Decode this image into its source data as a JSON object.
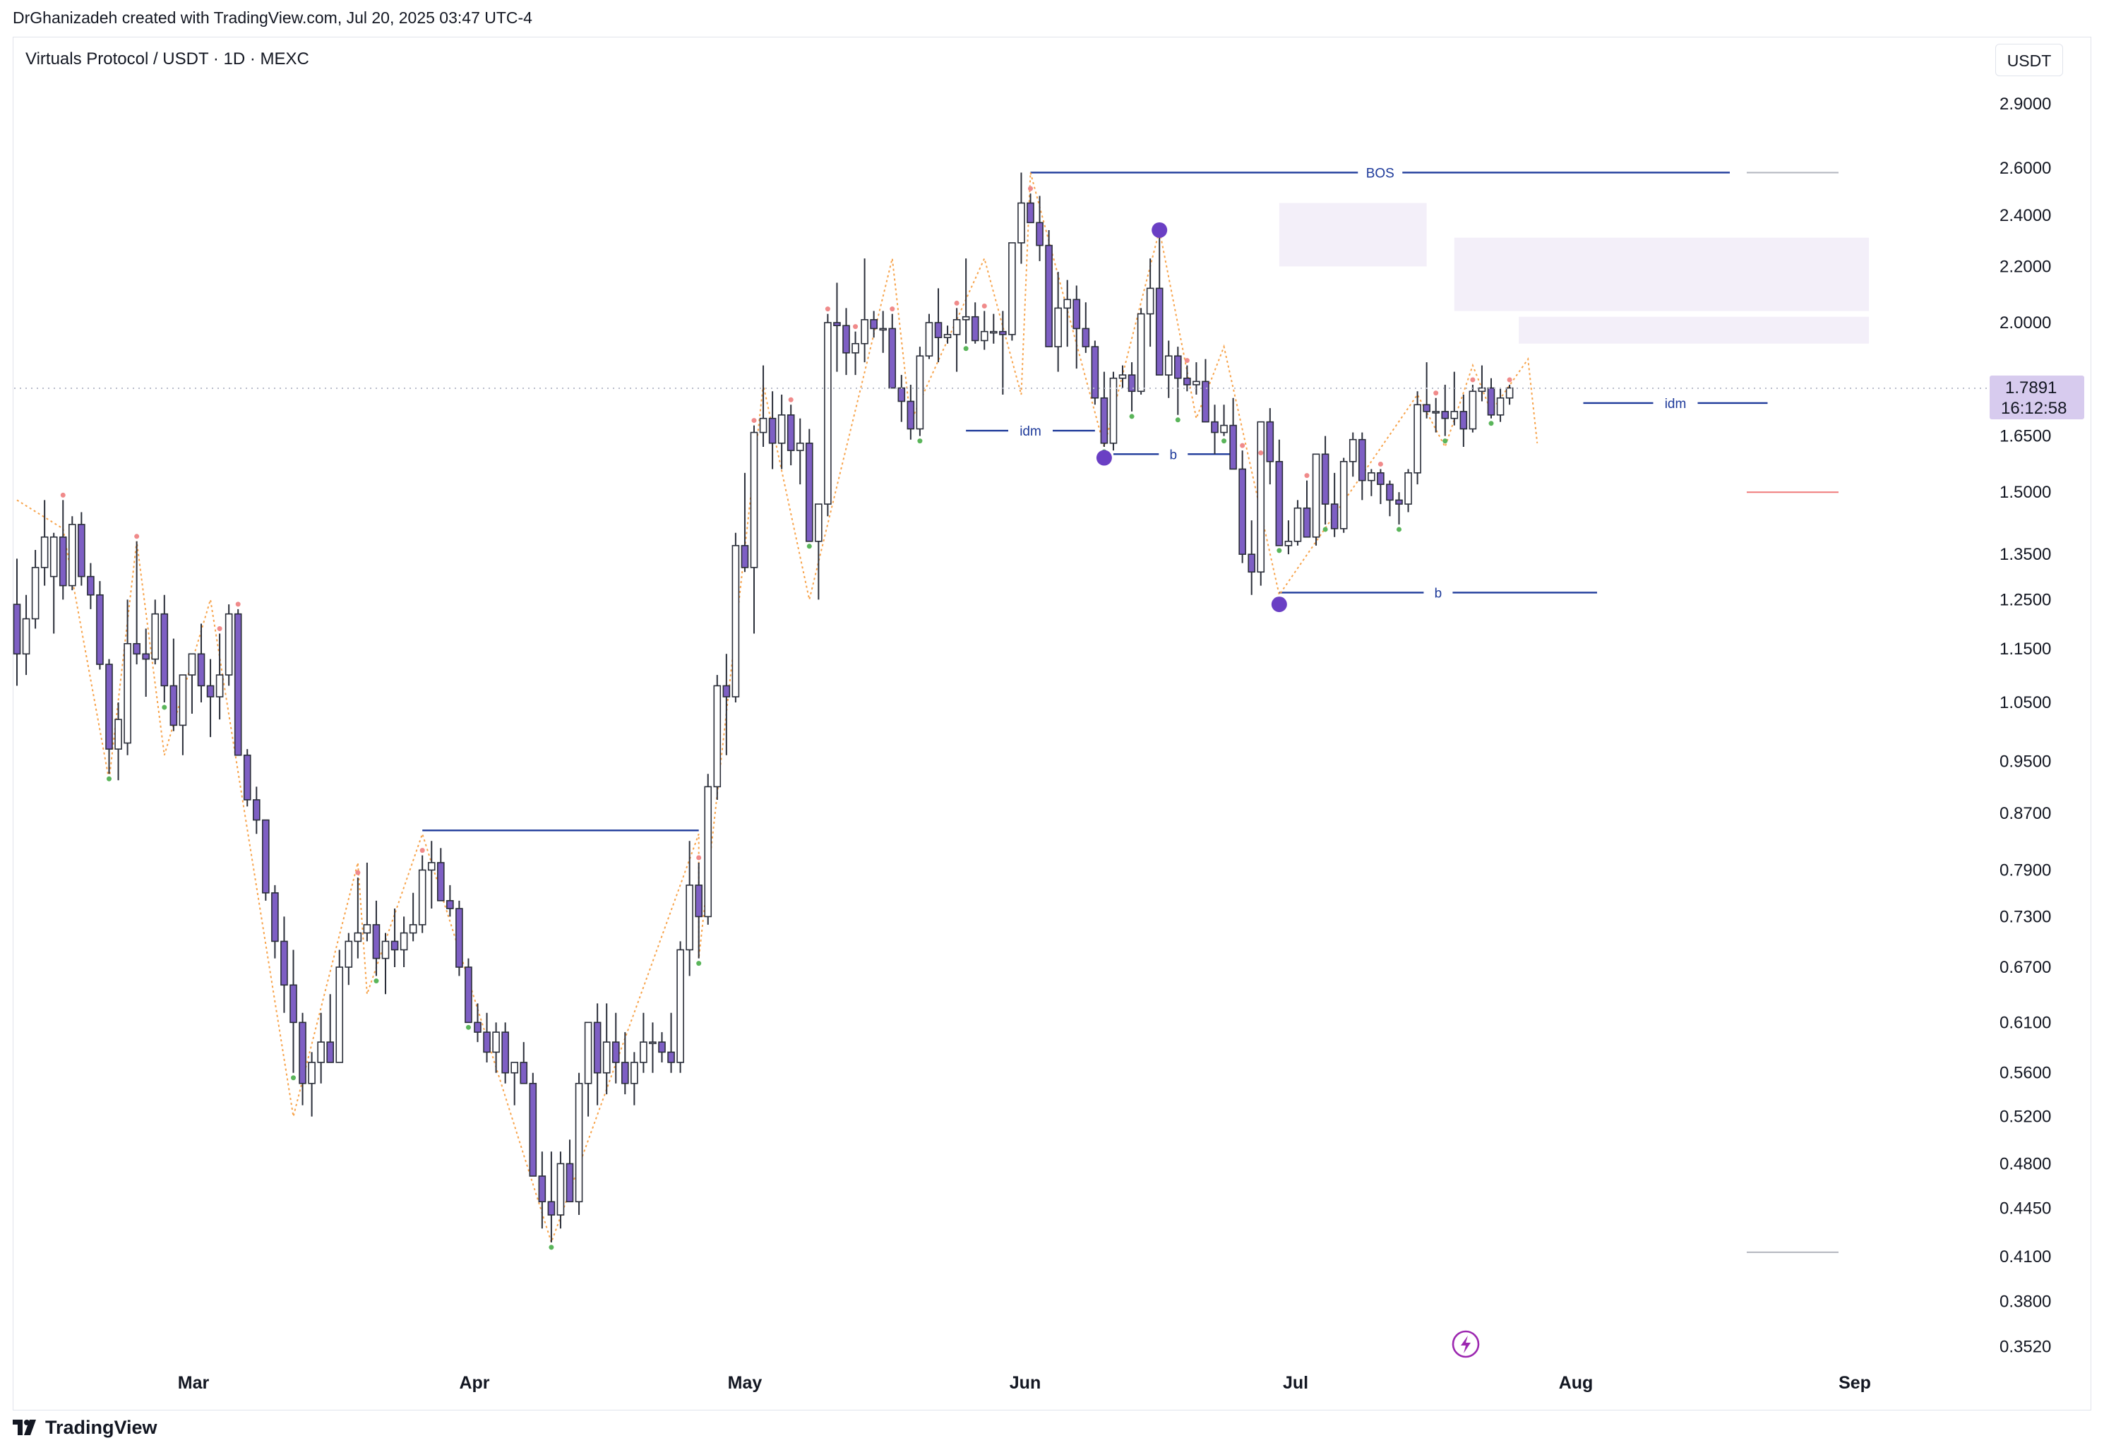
{
  "header": {
    "attribution": "DrGhanizadeh created with TradingView.com, Jul 20, 2025 03:47 UTC-4"
  },
  "symbol": {
    "title": "Virtuals Protocol / USDT · 1D · MEXC"
  },
  "toolbar": {
    "currency": "USDT"
  },
  "footer": {
    "brand": "TradingView"
  },
  "colors": {
    "up_candle_fill": "#ffffff",
    "down_candle_fill": "#7e5fc4",
    "candle_border": "#2a2e39",
    "zigzag": "#f7a34b",
    "structure_line": "#1e3a9a",
    "swing_high_dot": "#f08a8a",
    "swing_low_dot": "#5ab55a",
    "marker": "#6a3fc4",
    "zone_fill": "#f3eff9",
    "current_price_bg": "#d7cbee"
  },
  "chart_data": {
    "type": "candlestick",
    "scale": "log",
    "ylim": [
      0.335,
      3.05
    ],
    "x_axis_labels": [
      "Mar",
      "Apr",
      "May",
      "Jun",
      "Jul",
      "Aug",
      "Sep"
    ],
    "y_axis_labels": [
      "2.9000",
      "2.6000",
      "2.4000",
      "2.2000",
      "2.0000",
      "1.6500",
      "1.5000",
      "1.3500",
      "1.2500",
      "1.1500",
      "1.0500",
      "0.9500",
      "0.8700",
      "0.7900",
      "0.7300",
      "0.6700",
      "0.6100",
      "0.5600",
      "0.5200",
      "0.4800",
      "0.4450",
      "0.4100",
      "0.3800",
      "0.3520"
    ],
    "current_price": {
      "value": 1.7891,
      "label": "1.7891",
      "countdown": "16:12:58"
    },
    "candles_ohlc": [
      [
        1.24,
        1.34,
        1.08,
        1.14
      ],
      [
        1.14,
        1.26,
        1.1,
        1.21
      ],
      [
        1.21,
        1.36,
        1.19,
        1.32
      ],
      [
        1.32,
        1.48,
        1.28,
        1.39
      ],
      [
        1.3,
        1.4,
        1.18,
        1.39
      ],
      [
        1.39,
        1.48,
        1.25,
        1.28
      ],
      [
        1.28,
        1.44,
        1.27,
        1.42
      ],
      [
        1.42,
        1.45,
        1.28,
        1.3
      ],
      [
        1.3,
        1.33,
        1.23,
        1.26
      ],
      [
        1.26,
        1.29,
        1.11,
        1.12
      ],
      [
        1.12,
        1.13,
        0.93,
        0.97
      ],
      [
        0.97,
        1.05,
        0.92,
        1.02
      ],
      [
        0.98,
        1.25,
        0.96,
        1.16
      ],
      [
        1.16,
        1.38,
        1.12,
        1.14
      ],
      [
        1.14,
        1.19,
        1.06,
        1.13
      ],
      [
        1.13,
        1.25,
        1.12,
        1.22
      ],
      [
        1.22,
        1.26,
        1.05,
        1.08
      ],
      [
        1.08,
        1.17,
        1.0,
        1.01
      ],
      [
        1.01,
        1.1,
        0.96,
        1.1
      ],
      [
        1.1,
        1.14,
        1.03,
        1.14
      ],
      [
        1.14,
        1.2,
        1.05,
        1.08
      ],
      [
        1.08,
        1.13,
        0.99,
        1.06
      ],
      [
        1.06,
        1.18,
        1.02,
        1.1
      ],
      [
        1.1,
        1.24,
        1.08,
        1.22
      ],
      [
        1.22,
        1.23,
        0.96,
        0.96
      ],
      [
        0.96,
        0.97,
        0.88,
        0.89
      ],
      [
        0.89,
        0.91,
        0.84,
        0.86
      ],
      [
        0.86,
        0.86,
        0.75,
        0.76
      ],
      [
        0.76,
        0.77,
        0.68,
        0.7
      ],
      [
        0.7,
        0.73,
        0.62,
        0.65
      ],
      [
        0.65,
        0.69,
        0.56,
        0.61
      ],
      [
        0.61,
        0.62,
        0.53,
        0.55
      ],
      [
        0.55,
        0.58,
        0.52,
        0.57
      ],
      [
        0.57,
        0.62,
        0.55,
        0.59
      ],
      [
        0.59,
        0.64,
        0.57,
        0.57
      ],
      [
        0.57,
        0.69,
        0.57,
        0.67
      ],
      [
        0.67,
        0.71,
        0.65,
        0.7
      ],
      [
        0.7,
        0.78,
        0.68,
        0.71
      ],
      [
        0.71,
        0.8,
        0.7,
        0.72
      ],
      [
        0.72,
        0.75,
        0.66,
        0.68
      ],
      [
        0.68,
        0.71,
        0.64,
        0.7
      ],
      [
        0.7,
        0.74,
        0.67,
        0.69
      ],
      [
        0.69,
        0.73,
        0.67,
        0.71
      ],
      [
        0.71,
        0.76,
        0.7,
        0.72
      ],
      [
        0.72,
        0.81,
        0.71,
        0.79
      ],
      [
        0.79,
        0.83,
        0.74,
        0.8
      ],
      [
        0.8,
        0.82,
        0.76,
        0.75
      ],
      [
        0.75,
        0.77,
        0.73,
        0.74
      ],
      [
        0.74,
        0.75,
        0.66,
        0.67
      ],
      [
        0.67,
        0.68,
        0.61,
        0.61
      ],
      [
        0.61,
        0.63,
        0.59,
        0.6
      ],
      [
        0.6,
        0.62,
        0.57,
        0.58
      ],
      [
        0.58,
        0.61,
        0.56,
        0.6
      ],
      [
        0.6,
        0.61,
        0.55,
        0.56
      ],
      [
        0.56,
        0.57,
        0.53,
        0.57
      ],
      [
        0.57,
        0.59,
        0.55,
        0.55
      ],
      [
        0.55,
        0.56,
        0.47,
        0.47
      ],
      [
        0.47,
        0.49,
        0.43,
        0.45
      ],
      [
        0.45,
        0.49,
        0.42,
        0.44
      ],
      [
        0.44,
        0.49,
        0.43,
        0.48
      ],
      [
        0.48,
        0.5,
        0.45,
        0.45
      ],
      [
        0.45,
        0.56,
        0.44,
        0.55
      ],
      [
        0.55,
        0.61,
        0.52,
        0.61
      ],
      [
        0.61,
        0.63,
        0.53,
        0.56
      ],
      [
        0.56,
        0.63,
        0.54,
        0.59
      ],
      [
        0.59,
        0.62,
        0.55,
        0.57
      ],
      [
        0.57,
        0.6,
        0.54,
        0.55
      ],
      [
        0.55,
        0.58,
        0.53,
        0.57
      ],
      [
        0.57,
        0.62,
        0.56,
        0.59
      ],
      [
        0.59,
        0.61,
        0.56,
        0.59
      ],
      [
        0.59,
        0.6,
        0.57,
        0.58
      ],
      [
        0.58,
        0.62,
        0.56,
        0.57
      ],
      [
        0.57,
        0.7,
        0.56,
        0.69
      ],
      [
        0.69,
        0.83,
        0.66,
        0.77
      ],
      [
        0.77,
        0.8,
        0.68,
        0.73
      ],
      [
        0.73,
        0.93,
        0.72,
        0.91
      ],
      [
        0.91,
        1.1,
        0.89,
        1.08
      ],
      [
        1.08,
        1.14,
        0.96,
        1.06
      ],
      [
        1.06,
        1.4,
        1.05,
        1.37
      ],
      [
        1.37,
        1.55,
        1.31,
        1.32
      ],
      [
        1.32,
        1.68,
        1.18,
        1.66
      ],
      [
        1.66,
        1.86,
        1.62,
        1.7
      ],
      [
        1.7,
        1.78,
        1.56,
        1.63
      ],
      [
        1.63,
        1.77,
        1.56,
        1.71
      ],
      [
        1.71,
        1.74,
        1.57,
        1.61
      ],
      [
        1.61,
        1.7,
        1.52,
        1.63
      ],
      [
        1.63,
        1.67,
        1.38,
        1.38
      ],
      [
        1.38,
        1.42,
        1.25,
        1.47
      ],
      [
        1.47,
        2.03,
        1.44,
        2.0
      ],
      [
        2.0,
        2.14,
        1.84,
        1.99
      ],
      [
        1.99,
        2.05,
        1.83,
        1.9
      ],
      [
        1.9,
        1.97,
        1.83,
        1.93
      ],
      [
        1.93,
        2.23,
        1.87,
        2.01
      ],
      [
        2.01,
        2.04,
        1.95,
        1.98
      ],
      [
        1.98,
        2.04,
        1.9,
        1.98
      ],
      [
        1.98,
        2.03,
        1.79,
        1.79
      ],
      [
        1.79,
        1.83,
        1.69,
        1.75
      ],
      [
        1.75,
        1.8,
        1.64,
        1.67
      ],
      [
        1.67,
        1.92,
        1.65,
        1.89
      ],
      [
        1.89,
        2.03,
        1.88,
        2.0
      ],
      [
        2.0,
        2.12,
        1.87,
        1.95
      ],
      [
        1.95,
        1.99,
        1.93,
        1.96
      ],
      [
        1.96,
        2.05,
        1.84,
        2.01
      ],
      [
        2.01,
        2.23,
        1.93,
        2.02
      ],
      [
        2.02,
        2.07,
        1.93,
        1.94
      ],
      [
        1.94,
        2.04,
        1.91,
        1.97
      ],
      [
        1.97,
        2.03,
        1.93,
        1.97
      ],
      [
        1.97,
        2.04,
        1.77,
        1.96
      ],
      [
        1.96,
        2.27,
        1.94,
        2.29
      ],
      [
        2.29,
        2.58,
        2.21,
        2.45
      ],
      [
        2.45,
        2.49,
        2.38,
        2.37
      ],
      [
        2.37,
        2.48,
        2.22,
        2.28
      ],
      [
        2.28,
        2.34,
        2.16,
        1.92
      ],
      [
        1.92,
        2.18,
        1.84,
        2.05
      ],
      [
        2.05,
        2.15,
        1.92,
        2.08
      ],
      [
        2.08,
        2.13,
        1.85,
        1.98
      ],
      [
        1.98,
        2.07,
        1.9,
        1.92
      ],
      [
        1.92,
        1.94,
        1.74,
        1.76
      ],
      [
        1.76,
        1.84,
        1.62,
        1.63
      ],
      [
        1.63,
        1.84,
        1.61,
        1.82
      ],
      [
        1.82,
        1.86,
        1.79,
        1.83
      ],
      [
        1.83,
        1.87,
        1.72,
        1.78
      ],
      [
        1.78,
        2.05,
        1.77,
        2.03
      ],
      [
        2.03,
        2.23,
        1.92,
        2.12
      ],
      [
        2.12,
        2.34,
        2.08,
        1.83
      ],
      [
        1.83,
        1.94,
        1.76,
        1.89
      ],
      [
        1.89,
        1.92,
        1.71,
        1.82
      ],
      [
        1.82,
        1.86,
        1.78,
        1.8
      ],
      [
        1.8,
        1.87,
        1.77,
        1.81
      ],
      [
        1.81,
        1.88,
        1.7,
        1.69
      ],
      [
        1.69,
        1.74,
        1.6,
        1.66
      ],
      [
        1.66,
        1.74,
        1.65,
        1.68
      ],
      [
        1.68,
        1.76,
        1.6,
        1.56
      ],
      [
        1.56,
        1.61,
        1.33,
        1.35
      ],
      [
        1.35,
        1.43,
        1.26,
        1.31
      ],
      [
        1.31,
        1.59,
        1.28,
        1.69
      ],
      [
        1.69,
        1.73,
        1.52,
        1.58
      ],
      [
        1.58,
        1.64,
        1.37,
        1.37
      ],
      [
        1.37,
        1.43,
        1.35,
        1.38
      ],
      [
        1.38,
        1.48,
        1.37,
        1.46
      ],
      [
        1.46,
        1.53,
        1.41,
        1.39
      ],
      [
        1.39,
        1.6,
        1.37,
        1.6
      ],
      [
        1.6,
        1.65,
        1.42,
        1.47
      ],
      [
        1.47,
        1.55,
        1.39,
        1.41
      ],
      [
        1.41,
        1.59,
        1.4,
        1.58
      ],
      [
        1.58,
        1.66,
        1.54,
        1.64
      ],
      [
        1.64,
        1.66,
        1.48,
        1.53
      ],
      [
        1.53,
        1.56,
        1.49,
        1.55
      ],
      [
        1.55,
        1.56,
        1.47,
        1.52
      ],
      [
        1.52,
        1.53,
        1.44,
        1.48
      ],
      [
        1.48,
        1.5,
        1.42,
        1.47
      ],
      [
        1.47,
        1.56,
        1.45,
        1.55
      ],
      [
        1.55,
        1.78,
        1.52,
        1.74
      ],
      [
        1.74,
        1.87,
        1.7,
        1.72
      ],
      [
        1.72,
        1.76,
        1.66,
        1.72
      ],
      [
        1.72,
        1.8,
        1.65,
        1.7
      ],
      [
        1.7,
        1.84,
        1.68,
        1.72
      ],
      [
        1.72,
        1.77,
        1.62,
        1.67
      ],
      [
        1.67,
        1.8,
        1.66,
        1.78
      ],
      [
        1.78,
        1.86,
        1.75,
        1.79
      ],
      [
        1.79,
        1.82,
        1.7,
        1.71
      ],
      [
        1.71,
        1.79,
        1.69,
        1.76
      ],
      [
        1.76,
        1.8,
        1.74,
        1.79
      ]
    ],
    "annotations": {
      "bos": {
        "label": "BOS",
        "price": 2.58
      },
      "idm_upper": {
        "label": "idm",
        "price": 1.745
      },
      "idm_lower": {
        "label": "idm",
        "price": 1.665
      },
      "b_upper": {
        "label": "b",
        "price": 1.6
      },
      "b_lower": {
        "label": "b",
        "price": 1.265
      },
      "march_level": {
        "price": 0.845
      }
    }
  }
}
